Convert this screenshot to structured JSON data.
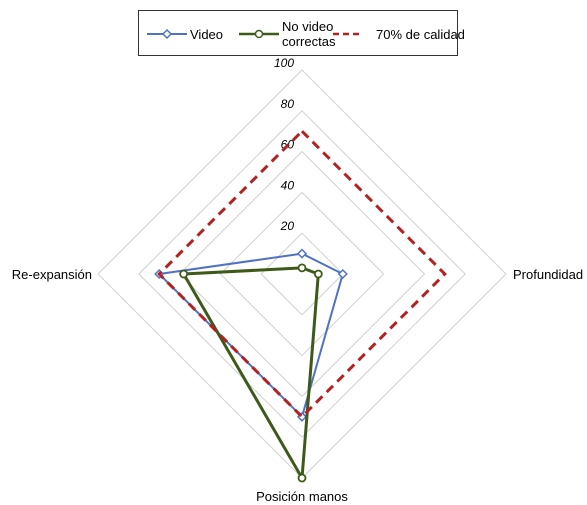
{
  "chart_data": {
    "type": "radar",
    "axes": [
      "Profundidad",
      "Posición manos",
      "Re-expansión",
      "Re-expansión"
    ],
    "axis_labels": {
      "top": "",
      "right": "Profundidad",
      "bottom": "Posición manos",
      "left": "Re-expansión"
    },
    "r_ticks": [
      "20",
      "40",
      "60",
      "80",
      "100"
    ],
    "r_range": [
      0,
      100
    ],
    "series": [
      {
        "name": "Video",
        "color": "#4f72c4",
        "marker": "diamond",
        "values": {
          "top": 10,
          "right": 20,
          "bottom": 70,
          "left": 70
        }
      },
      {
        "name": "No video correctas",
        "color": "#3e5a1a",
        "marker": "circle",
        "values": {
          "top": 3,
          "right": 8,
          "bottom": 100,
          "left": 58
        }
      },
      {
        "name": "70% de calidad",
        "color": "#b22222",
        "dashed": true,
        "values": {
          "top": 70,
          "right": 70,
          "bottom": 70,
          "left": 70
        }
      }
    ]
  },
  "legend": {
    "video": "Video",
    "novideo_line1": "No video",
    "novideo_line2": "correctas",
    "quality": "70% de calidad"
  }
}
